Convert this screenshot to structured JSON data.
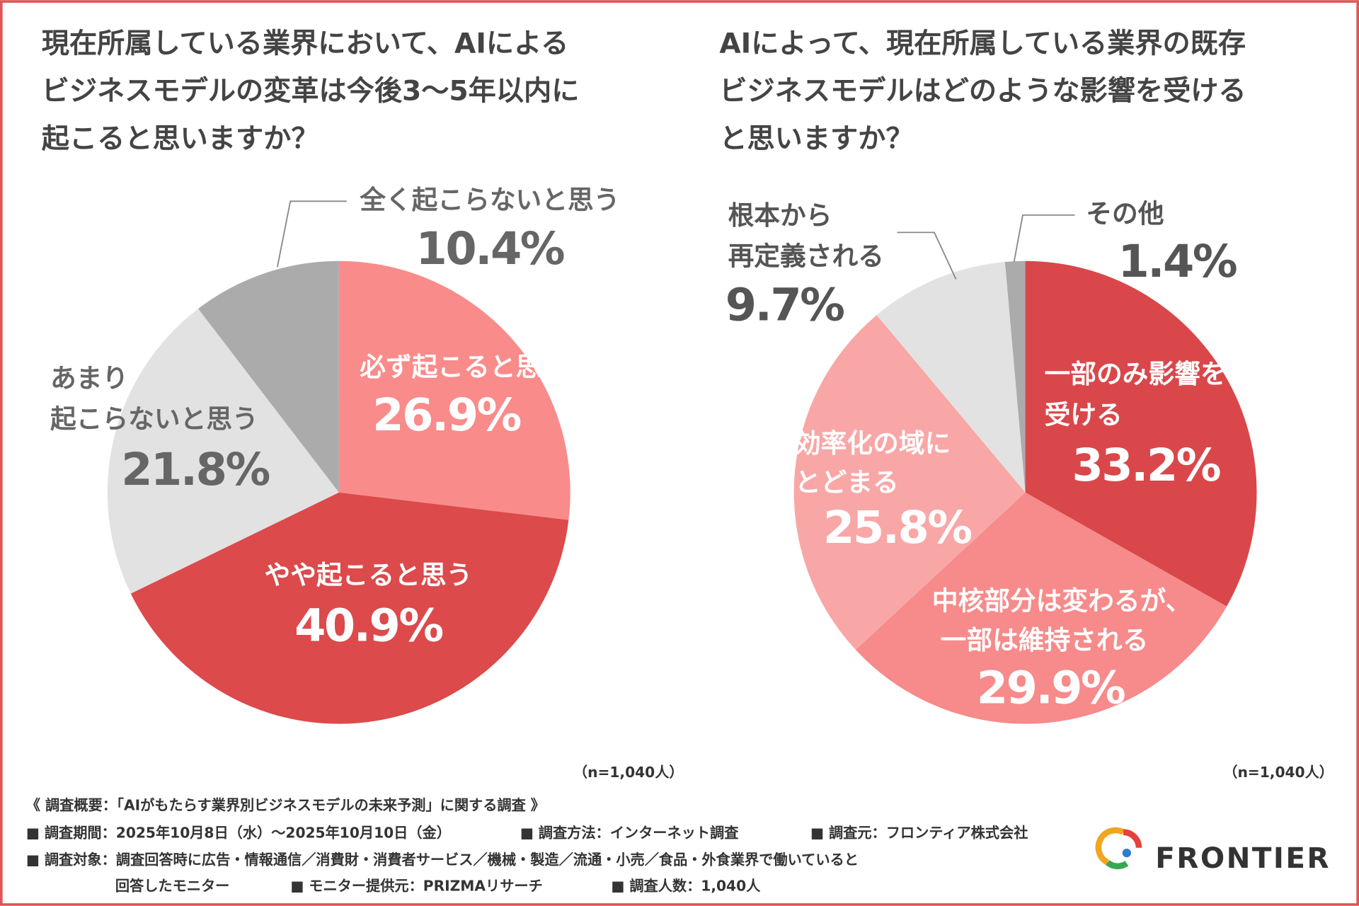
{
  "chart_data": [
    {
      "type": "pie",
      "title": [
        "現在所属している業界において、AIによる",
        "ビジネスモデルの変革は今後3〜5年以内に",
        "起こると思いますか？"
      ],
      "categories": [
        [
          "必ず起こると思う"
        ],
        [
          "やや起こると思う"
        ],
        [
          "あまり",
          "起こらないと思う"
        ],
        [
          "全く起こらないと思う"
        ]
      ],
      "values": [
        26.9,
        40.9,
        21.8,
        10.4
      ],
      "value_labels": [
        "26.9%",
        "40.9%",
        "21.8%",
        "10.4%"
      ],
      "colors": [
        "#f98b8b",
        "#dc4a4c",
        "#e2e2e2",
        "#ababab"
      ],
      "note": "（n=1,040人）"
    },
    {
      "type": "pie",
      "title": [
        "AIによって、現在所属している業界の既存",
        "ビジネスモデルはどのような影響を受ける",
        "と思いますか？"
      ],
      "categories": [
        [
          "一部のみ影響を",
          "受ける"
        ],
        [
          "中核部分は変わるが、",
          "一部は維持される"
        ],
        [
          "効率化の域に",
          "とどまる"
        ],
        [
          "根本から",
          "再定義される"
        ],
        [
          "その他"
        ]
      ],
      "values": [
        33.2,
        29.9,
        25.8,
        9.7,
        1.4
      ],
      "value_labels": [
        "33.2%",
        "29.9%",
        "25.8%",
        "9.7%",
        "1.4%"
      ],
      "colors": [
        "#d9474a",
        "#f78a8a",
        "#f9a6a6",
        "#e2e2e2",
        "#ababab"
      ],
      "note": "（n=1,040人）"
    }
  ],
  "footer": {
    "heading": "《 調査概要：「AIがもたらす業界別ビジネスモデルの未来予測」に関する調査 》",
    "period": "■ 調査期間：2025年10月8日（水）～2025年10月10日（金）",
    "method": "■ 調査方法：インターネット調査",
    "source": "■ 調査元：フロンティア株式会社",
    "target": "■ 調査対象：調査回答時に広告・情報通信／消費財・消費者サービス／機械・製造／流通・小売／食品・外食業界で働いていると",
    "target2": "回答したモニター",
    "provider": "■ モニター提供元：PRIZMAリサーチ",
    "count": "■ 調査人数：1,040人",
    "logo": "FRONTIER"
  }
}
